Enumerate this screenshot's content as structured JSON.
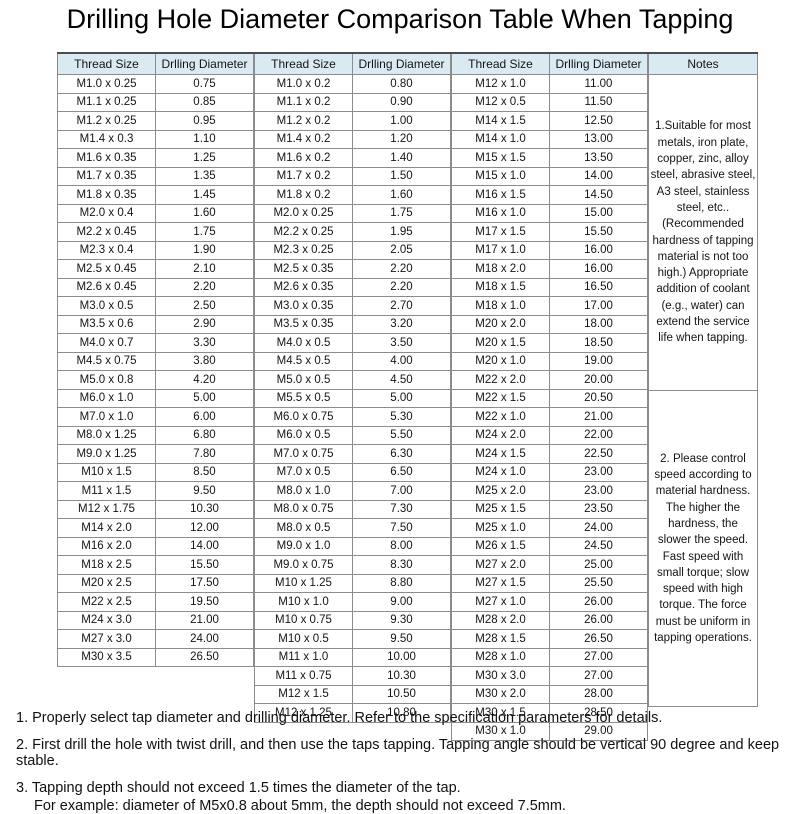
{
  "title": "Drilling Hole Diameter Comparison Table When Tapping",
  "colors": {
    "header_bg": "#d9eaf3",
    "inner_border": "#8c8c8c",
    "outer_border": "#4d4d4d",
    "page_bg": "#ffffff"
  },
  "table": {
    "headers": {
      "thread": "Thread Size",
      "diameter": "Drlling Diameter",
      "notes": "Notes"
    },
    "column1": [
      [
        "M1.0 x 0.25",
        "0.75"
      ],
      [
        "M1.1 x 0.25",
        "0.85"
      ],
      [
        "M1.2 x 0.25",
        "0.95"
      ],
      [
        "M1.4 x 0.3",
        "1.10"
      ],
      [
        "M1.6 x 0.35",
        "1.25"
      ],
      [
        "M1.7 x 0.35",
        "1.35"
      ],
      [
        "M1.8 x 0.35",
        "1.45"
      ],
      [
        "M2.0 x 0.4",
        "1.60"
      ],
      [
        "M2.2 x 0.45",
        "1.75"
      ],
      [
        "M2.3 x 0.4",
        "1.90"
      ],
      [
        "M2.5 x 0.45",
        "2.10"
      ],
      [
        "M2.6 x 0.45",
        "2.20"
      ],
      [
        "M3.0 x 0.5",
        "2.50"
      ],
      [
        "M3.5 x 0.6",
        "2.90"
      ],
      [
        "M4.0 x 0.7",
        "3.30"
      ],
      [
        "M4.5 x 0.75",
        "3.80"
      ],
      [
        "M5.0 x 0.8",
        "4.20"
      ],
      [
        "M6.0 x 1.0",
        "5.00"
      ],
      [
        "M7.0 x 1.0",
        "6.00"
      ],
      [
        "M8.0 x 1.25",
        "6.80"
      ],
      [
        "M9.0 x 1.25",
        "7.80"
      ],
      [
        "M10 x 1.5",
        "8.50"
      ],
      [
        "M11 x 1.5",
        "9.50"
      ],
      [
        "M12 x 1.75",
        "10.30"
      ],
      [
        "M14 x 2.0",
        "12.00"
      ],
      [
        "M16 x 2.0",
        "14.00"
      ],
      [
        "M18 x 2.5",
        "15.50"
      ],
      [
        "M20 x 2.5",
        "17.50"
      ],
      [
        "M22 x 2.5",
        "19.50"
      ],
      [
        "M24 x 3.0",
        "21.00"
      ],
      [
        "M27 x 3.0",
        "24.00"
      ],
      [
        "M30 x 3.5",
        "26.50"
      ]
    ],
    "column2": [
      [
        "M1.0 x 0.2",
        "0.80"
      ],
      [
        "M1.1 x 0.2",
        "0.90"
      ],
      [
        "M1.2 x 0.2",
        "1.00"
      ],
      [
        "M1.4 x 0.2",
        "1.20"
      ],
      [
        "M1.6 x 0.2",
        "1.40"
      ],
      [
        "M1.7 x 0.2",
        "1.50"
      ],
      [
        "M1.8 x 0.2",
        "1.60"
      ],
      [
        "M2.0 x 0.25",
        "1.75"
      ],
      [
        "M2.2 x 0.25",
        "1.95"
      ],
      [
        "M2.3 x 0.25",
        "2.05"
      ],
      [
        "M2.5 x 0.35",
        "2.20"
      ],
      [
        "M2.6 x 0.35",
        "2.20"
      ],
      [
        "M3.0 x 0.35",
        "2.70"
      ],
      [
        "M3.5 x 0.35",
        "3.20"
      ],
      [
        "M4.0 x 0.5",
        "3.50"
      ],
      [
        "M4.5 x 0.5",
        "4.00"
      ],
      [
        "M5.0 x 0.5",
        "4.50"
      ],
      [
        "M5.5 x 0.5",
        "5.00"
      ],
      [
        "M6.0 x 0.75",
        "5.30"
      ],
      [
        "M6.0 x 0.5",
        "5.50"
      ],
      [
        "M7.0 x 0.75",
        "6.30"
      ],
      [
        "M7.0 x 0.5",
        "6.50"
      ],
      [
        "M8.0 x 1.0",
        "7.00"
      ],
      [
        "M8.0 x 0.75",
        "7.30"
      ],
      [
        "M8.0 x 0.5",
        "7.50"
      ],
      [
        "M9.0 x 1.0",
        "8.00"
      ],
      [
        "M9.0 x 0.75",
        "8.30"
      ],
      [
        "M10 x 1.25",
        "8.80"
      ],
      [
        "M10 x 1.0",
        "9.00"
      ],
      [
        "M10 x 0.75",
        "9.30"
      ],
      [
        "M10 x 0.5",
        "9.50"
      ],
      [
        "M11 x 1.0",
        "10.00"
      ],
      [
        "M11 x 0.75",
        "10.30"
      ],
      [
        "M12 x 1.5",
        "10.50"
      ],
      [
        "M12 x 1.25",
        "10.80"
      ]
    ],
    "column3": [
      [
        "M12 x 1.0",
        "11.00"
      ],
      [
        "M12 x 0.5",
        "11.50"
      ],
      [
        "M14 x 1.5",
        "12.50"
      ],
      [
        "M14 x 1.0",
        "13.00"
      ],
      [
        "M15 x 1.5",
        "13.50"
      ],
      [
        "M15 x 1.0",
        "14.00"
      ],
      [
        "M16 x 1.5",
        "14.50"
      ],
      [
        "M16 x 1.0",
        "15.00"
      ],
      [
        "M17 x 1.5",
        "15.50"
      ],
      [
        "M17 x 1.0",
        "16.00"
      ],
      [
        "M18 x 2.0",
        "16.00"
      ],
      [
        "M18 x 1.5",
        "16.50"
      ],
      [
        "M18 x 1.0",
        "17.00"
      ],
      [
        "M20 x 2.0",
        "18.00"
      ],
      [
        "M20 x 1.5",
        "18.50"
      ],
      [
        "M20 x 1.0",
        "19.00"
      ],
      [
        "M22 x 2.0",
        "20.00"
      ],
      [
        "M22 x 1.5",
        "20.50"
      ],
      [
        "M22 x 1.0",
        "21.00"
      ],
      [
        "M24 x 2.0",
        "22.00"
      ],
      [
        "M24 x 1.5",
        "22.50"
      ],
      [
        "M24 x 1.0",
        "23.00"
      ],
      [
        "M25 x 2.0",
        "23.00"
      ],
      [
        "M25 x 1.5",
        "23.50"
      ],
      [
        "M25 x 1.0",
        "24.00"
      ],
      [
        "M26 x 1.5",
        "24.50"
      ],
      [
        "M27 x 2.0",
        "25.00"
      ],
      [
        "M27 x 1.5",
        "25.50"
      ],
      [
        "M27 x 1.0",
        "26.00"
      ],
      [
        "M28 x 2.0",
        "26.00"
      ],
      [
        "M28 x 1.5",
        "26.50"
      ],
      [
        "M28 x 1.0",
        "27.00"
      ],
      [
        "M30 x 3.0",
        "27.00"
      ],
      [
        "M30 x 2.0",
        "28.00"
      ],
      [
        "M30 x 1.5",
        "28.50"
      ],
      [
        "M30 x 1.0",
        "29.00"
      ]
    ],
    "notes": [
      "1.Suitable for most metals, iron plate, copper, zinc, alloy steel, abrasive steel, A3 steel, stainless steel, etc..(Recommended hardness of tapping material is not too high.) Appropriate addition of coolant (e.g., water) can extend the service life when tapping.",
      "2. Please control speed according to material hardness. The higher the hardness, the slower the speed. Fast speed with small torque; slow speed with high torque. The force must be uniform in tapping operations."
    ]
  },
  "footnotes": [
    "1. Properly select tap diameter and drilling diameter. Refer to the specification parameters for details.",
    "2. First drill the hole with twist drill, and then use the taps tapping. Tapping angle should be vertical 90 degree and keep stable.",
    "3. Tapping depth should not exceed 1.5 times the diameter of the tap.",
    "For example: diameter of M5x0.8 about 5mm, the depth should not exceed 7.5mm."
  ]
}
